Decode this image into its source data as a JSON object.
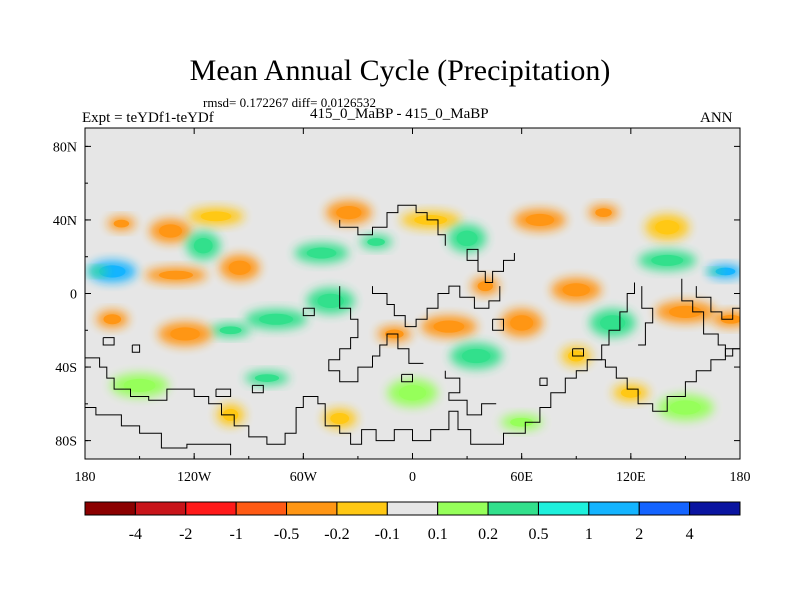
{
  "chart_data": {
    "type": "heatmap",
    "title": "Mean Annual Cycle (Precipitation)",
    "stats_line": "rmsd= 0.172267 diff= 0.0126532",
    "left_label": "Expt = teYDf1-teYDf",
    "center_label": "415_0_MaBP - 415_0_MaBP",
    "right_label": "ANN",
    "x_range": [
      -180,
      180
    ],
    "y_range": [
      -90,
      90
    ],
    "x_ticks": [
      {
        "value": -180,
        "label": "180"
      },
      {
        "value": -120,
        "label": "120W"
      },
      {
        "value": -60,
        "label": "60W"
      },
      {
        "value": 0,
        "label": "0"
      },
      {
        "value": 60,
        "label": "60E"
      },
      {
        "value": 120,
        "label": "120E"
      },
      {
        "value": 180,
        "label": "180"
      }
    ],
    "y_ticks": [
      {
        "value": 80,
        "label": "80N"
      },
      {
        "value": 40,
        "label": "40N"
      },
      {
        "value": 0,
        "label": "0"
      },
      {
        "value": -40,
        "label": "40S"
      },
      {
        "value": -80,
        "label": "80S"
      }
    ],
    "colorbar": {
      "colors": [
        "#8b0000",
        "#c8141a",
        "#ff1a1a",
        "#ff5a14",
        "#ff9614",
        "#ffc814",
        "#e6e6e6",
        "#96ff5a",
        "#32e08c",
        "#1ef0dc",
        "#14b4ff",
        "#1464ff",
        "#0a14a0"
      ],
      "levels": [
        "-4",
        "-2",
        "-1",
        "-0.5",
        "-0.2",
        "-0.1",
        "0.1",
        "0.2",
        "0.5",
        "1",
        "2",
        "4"
      ]
    },
    "field_features": [
      {
        "lon": -160,
        "lat": 38,
        "value": -0.3
      },
      {
        "lon": -133,
        "lat": 34,
        "value": -0.25
      },
      {
        "lon": -108,
        "lat": 42,
        "value": -0.15
      },
      {
        "lon": -115,
        "lat": 26,
        "value": 0.3
      },
      {
        "lon": -165,
        "lat": 12,
        "value": 1.2
      },
      {
        "lon": -130,
        "lat": 10,
        "value": -0.3
      },
      {
        "lon": -95,
        "lat": 14,
        "value": -0.2
      },
      {
        "lon": -50,
        "lat": 22,
        "value": 0.4
      },
      {
        "lon": -20,
        "lat": 28,
        "value": 0.3
      },
      {
        "lon": -35,
        "lat": 44,
        "value": -0.2
      },
      {
        "lon": 10,
        "lat": 40,
        "value": -0.15
      },
      {
        "lon": 30,
        "lat": 30,
        "value": 0.3
      },
      {
        "lon": 70,
        "lat": 40,
        "value": -0.2
      },
      {
        "lon": 105,
        "lat": 44,
        "value": -0.2
      },
      {
        "lon": 140,
        "lat": 36,
        "value": -0.15
      },
      {
        "lon": 140,
        "lat": 18,
        "value": 0.4
      },
      {
        "lon": 172,
        "lat": 12,
        "value": 1.2
      },
      {
        "lon": 90,
        "lat": 2,
        "value": -0.4
      },
      {
        "lon": 40,
        "lat": 4,
        "value": -0.3
      },
      {
        "lon": 60,
        "lat": -16,
        "value": -0.4
      },
      {
        "lon": 20,
        "lat": -18,
        "value": -0.3
      },
      {
        "lon": -10,
        "lat": -22,
        "value": -0.25
      },
      {
        "lon": -45,
        "lat": -4,
        "value": 0.5
      },
      {
        "lon": -75,
        "lat": -14,
        "value": 0.35
      },
      {
        "lon": -100,
        "lat": -20,
        "value": 0.3
      },
      {
        "lon": -125,
        "lat": -22,
        "value": -0.4
      },
      {
        "lon": -165,
        "lat": -14,
        "value": -0.3
      },
      {
        "lon": 110,
        "lat": -16,
        "value": 0.3
      },
      {
        "lon": 150,
        "lat": -10,
        "value": -0.3
      },
      {
        "lon": 175,
        "lat": -14,
        "value": -0.25
      },
      {
        "lon": 35,
        "lat": -34,
        "value": 0.3
      },
      {
        "lon": 90,
        "lat": -34,
        "value": -0.15
      },
      {
        "lon": -80,
        "lat": -46,
        "value": 0.25
      },
      {
        "lon": -150,
        "lat": -50,
        "value": 0.2
      },
      {
        "lon": 120,
        "lat": -54,
        "value": -0.15
      },
      {
        "lon": 0,
        "lat": -54,
        "value": 0.2
      },
      {
        "lon": -100,
        "lat": -66,
        "value": -0.15
      },
      {
        "lon": 60,
        "lat": -70,
        "value": 0.2
      },
      {
        "lon": 150,
        "lat": -62,
        "value": 0.2
      },
      {
        "lon": -40,
        "lat": -68,
        "value": -0.15
      }
    ],
    "coastlines": [
      [
        [
          -180,
          -35
        ],
        [
          -172,
          -35
        ],
        [
          -172,
          -40
        ],
        [
          -168,
          -40
        ],
        [
          -168,
          -46
        ],
        [
          -164,
          -46
        ],
        [
          -164,
          -52
        ],
        [
          -155,
          -52
        ],
        [
          -155,
          -56
        ],
        [
          -145,
          -56
        ],
        [
          -145,
          -58
        ],
        [
          -135,
          -58
        ],
        [
          -135,
          -52
        ],
        [
          -120,
          -52
        ],
        [
          -120,
          -56
        ],
        [
          -112,
          -56
        ],
        [
          -112,
          -60
        ],
        [
          -105,
          -60
        ],
        [
          -105,
          -66
        ],
        [
          -98,
          -66
        ],
        [
          -98,
          -72
        ],
        [
          -90,
          -72
        ],
        [
          -90,
          -78
        ],
        [
          -80,
          -78
        ],
        [
          -80,
          -82
        ],
        [
          -70,
          -82
        ],
        [
          -70,
          -76
        ],
        [
          -64,
          -76
        ],
        [
          -64,
          -62
        ],
        [
          -60,
          -62
        ],
        [
          -60,
          -56
        ],
        [
          -52,
          -56
        ],
        [
          -52,
          -60
        ],
        [
          -48,
          -60
        ],
        [
          -48,
          -72
        ],
        [
          -40,
          -72
        ],
        [
          -40,
          -76
        ],
        [
          -34,
          -76
        ],
        [
          -34,
          -82
        ],
        [
          -28,
          -82
        ],
        [
          -28,
          -74
        ],
        [
          -20,
          -74
        ],
        [
          -20,
          -80
        ],
        [
          -10,
          -80
        ],
        [
          -10,
          -74
        ],
        [
          0,
          -74
        ],
        [
          0,
          -80
        ],
        [
          10,
          -80
        ],
        [
          10,
          -74
        ],
        [
          20,
          -74
        ],
        [
          20,
          -64
        ],
        [
          25,
          -64
        ],
        [
          25,
          -74
        ],
        [
          32,
          -74
        ],
        [
          32,
          -82
        ],
        [
          50,
          -82
        ],
        [
          50,
          -76
        ],
        [
          62,
          -76
        ],
        [
          62,
          -70
        ],
        [
          70,
          -70
        ],
        [
          70,
          -62
        ],
        [
          76,
          -62
        ],
        [
          76,
          -54
        ],
        [
          84,
          -54
        ],
        [
          84,
          -46
        ],
        [
          90,
          -46
        ],
        [
          90,
          -42
        ],
        [
          96,
          -42
        ],
        [
          96,
          -36
        ],
        [
          106,
          -36
        ],
        [
          106,
          -40
        ],
        [
          112,
          -40
        ],
        [
          112,
          -46
        ],
        [
          118,
          -46
        ],
        [
          118,
          -52
        ],
        [
          124,
          -52
        ],
        [
          124,
          -60
        ],
        [
          132,
          -60
        ],
        [
          132,
          -64
        ],
        [
          140,
          -64
        ],
        [
          140,
          -56
        ],
        [
          150,
          -56
        ],
        [
          150,
          -48
        ],
        [
          156,
          -48
        ],
        [
          156,
          -42
        ],
        [
          164,
          -42
        ],
        [
          164,
          -36
        ],
        [
          172,
          -36
        ],
        [
          172,
          -30
        ],
        [
          180,
          -30
        ]
      ],
      [
        [
          -180,
          -62
        ],
        [
          -174,
          -62
        ],
        [
          -174,
          -66
        ],
        [
          -160,
          -66
        ],
        [
          -160,
          -72
        ],
        [
          -150,
          -72
        ],
        [
          -150,
          -76
        ],
        [
          -138,
          -76
        ],
        [
          -138,
          -84
        ],
        [
          -124,
          -84
        ],
        [
          -124,
          -82
        ],
        [
          -100,
          -82
        ],
        [
          -100,
          -88
        ]
      ],
      [
        [
          -40,
          40
        ],
        [
          -40,
          36
        ],
        [
          -30,
          36
        ],
        [
          -30,
          32
        ],
        [
          -22,
          32
        ],
        [
          -22,
          36
        ],
        [
          -14,
          36
        ],
        [
          -14,
          44
        ],
        [
          -8,
          44
        ],
        [
          -8,
          48
        ],
        [
          2,
          48
        ],
        [
          2,
          44
        ],
        [
          8,
          44
        ],
        [
          8,
          40
        ],
        [
          14,
          40
        ],
        [
          14,
          32
        ],
        [
          18,
          32
        ],
        [
          18,
          26
        ]
      ],
      [
        [
          -22,
          4
        ],
        [
          -22,
          0
        ],
        [
          -14,
          0
        ],
        [
          -14,
          -6
        ],
        [
          -10,
          -6
        ],
        [
          -10,
          -12
        ],
        [
          -4,
          -12
        ],
        [
          -4,
          -18
        ],
        [
          2,
          -18
        ],
        [
          2,
          -14
        ],
        [
          8,
          -14
        ],
        [
          8,
          -8
        ],
        [
          14,
          -8
        ],
        [
          14,
          0
        ],
        [
          20,
          0
        ],
        [
          20,
          4
        ],
        [
          26,
          4
        ],
        [
          26,
          -2
        ],
        [
          34,
          -2
        ],
        [
          34,
          -8
        ],
        [
          42,
          -8
        ],
        [
          42,
          -4
        ],
        [
          48,
          -4
        ],
        [
          48,
          4
        ]
      ],
      [
        [
          -40,
          4
        ],
        [
          -40,
          -8
        ],
        [
          -34,
          -8
        ],
        [
          -34,
          -14
        ],
        [
          -30,
          -14
        ],
        [
          -30,
          -24
        ],
        [
          -34,
          -24
        ],
        [
          -34,
          -30
        ],
        [
          -40,
          -30
        ],
        [
          -40,
          -36
        ],
        [
          -46,
          -36
        ],
        [
          -46,
          -42
        ],
        [
          -40,
          -42
        ],
        [
          -40,
          -48
        ],
        [
          -30,
          -48
        ],
        [
          -30,
          -40
        ],
        [
          -22,
          -40
        ],
        [
          -22,
          -34
        ],
        [
          -18,
          -34
        ],
        [
          -18,
          -28
        ],
        [
          -14,
          -28
        ],
        [
          -14,
          -22
        ],
        [
          -8,
          -22
        ],
        [
          -8,
          -30
        ],
        [
          -2,
          -30
        ],
        [
          -2,
          -38
        ],
        [
          6,
          -38
        ]
      ],
      [
        [
          18,
          -42
        ],
        [
          18,
          -46
        ],
        [
          26,
          -46
        ],
        [
          26,
          -54
        ],
        [
          20,
          -54
        ],
        [
          20,
          -58
        ],
        [
          30,
          -58
        ],
        [
          30,
          -66
        ],
        [
          38,
          -66
        ],
        [
          38,
          -60
        ],
        [
          46,
          -60
        ]
      ],
      [
        [
          122,
          6
        ],
        [
          122,
          0
        ],
        [
          118,
          0
        ],
        [
          118,
          -10
        ],
        [
          114,
          -10
        ],
        [
          114,
          -20
        ],
        [
          108,
          -20
        ],
        [
          108,
          -28
        ],
        [
          104,
          -28
        ],
        [
          104,
          -36
        ],
        [
          96,
          -36
        ]
      ],
      [
        [
          126,
          4
        ],
        [
          126,
          -8
        ],
        [
          132,
          -8
        ],
        [
          132,
          -16
        ],
        [
          128,
          -16
        ],
        [
          128,
          -28
        ],
        [
          124,
          -28
        ]
      ],
      [
        [
          148,
          8
        ],
        [
          148,
          -4
        ],
        [
          154,
          -4
        ],
        [
          154,
          -10
        ],
        [
          160,
          -10
        ],
        [
          160,
          -22
        ],
        [
          168,
          -22
        ],
        [
          168,
          -28
        ],
        [
          172,
          -28
        ],
        [
          172,
          -34
        ],
        [
          176,
          -34
        ],
        [
          176,
          -30
        ],
        [
          180,
          -30
        ]
      ],
      [
        [
          156,
          4
        ],
        [
          156,
          -2
        ],
        [
          164,
          -2
        ],
        [
          164,
          -10
        ],
        [
          170,
          -10
        ],
        [
          170,
          -14
        ],
        [
          176,
          -14
        ],
        [
          176,
          -8
        ],
        [
          180,
          -8
        ]
      ],
      [
        [
          56,
          22
        ],
        [
          56,
          18
        ],
        [
          50,
          18
        ],
        [
          50,
          12
        ],
        [
          44,
          12
        ],
        [
          44,
          6
        ],
        [
          40,
          6
        ],
        [
          40,
          12
        ],
        [
          36,
          12
        ],
        [
          36,
          18
        ],
        [
          30,
          18
        ],
        [
          30,
          24
        ],
        [
          36,
          24
        ],
        [
          36,
          16
        ]
      ],
      [
        [
          44,
          -14
        ],
        [
          44,
          -20
        ],
        [
          50,
          -20
        ],
        [
          50,
          -14
        ],
        [
          44,
          -14
        ]
      ],
      [
        [
          88,
          -30
        ],
        [
          88,
          -34
        ],
        [
          94,
          -34
        ],
        [
          94,
          -30
        ],
        [
          88,
          -30
        ]
      ],
      [
        [
          -170,
          -24
        ],
        [
          -170,
          -28
        ],
        [
          -164,
          -28
        ],
        [
          -164,
          -24
        ],
        [
          -170,
          -24
        ]
      ],
      [
        [
          -108,
          -52
        ],
        [
          -108,
          -56
        ],
        [
          -100,
          -56
        ],
        [
          -100,
          -52
        ],
        [
          -108,
          -52
        ]
      ],
      [
        [
          -88,
          -50
        ],
        [
          -88,
          -54
        ],
        [
          -82,
          -54
        ],
        [
          -82,
          -50
        ],
        [
          -88,
          -50
        ]
      ],
      [
        [
          70,
          -46
        ],
        [
          70,
          -50
        ],
        [
          74,
          -50
        ],
        [
          74,
          -46
        ],
        [
          70,
          -46
        ]
      ],
      [
        [
          -6,
          -44
        ],
        [
          -6,
          -48
        ],
        [
          0,
          -48
        ],
        [
          0,
          -44
        ],
        [
          -6,
          -44
        ]
      ],
      [
        [
          -60,
          -8
        ],
        [
          -60,
          -12
        ],
        [
          -54,
          -12
        ],
        [
          -54,
          -8
        ],
        [
          -60,
          -8
        ]
      ],
      [
        [
          -154,
          -28
        ],
        [
          -154,
          -32
        ],
        [
          -150,
          -32
        ],
        [
          -150,
          -28
        ],
        [
          -154,
          -28
        ]
      ]
    ]
  }
}
